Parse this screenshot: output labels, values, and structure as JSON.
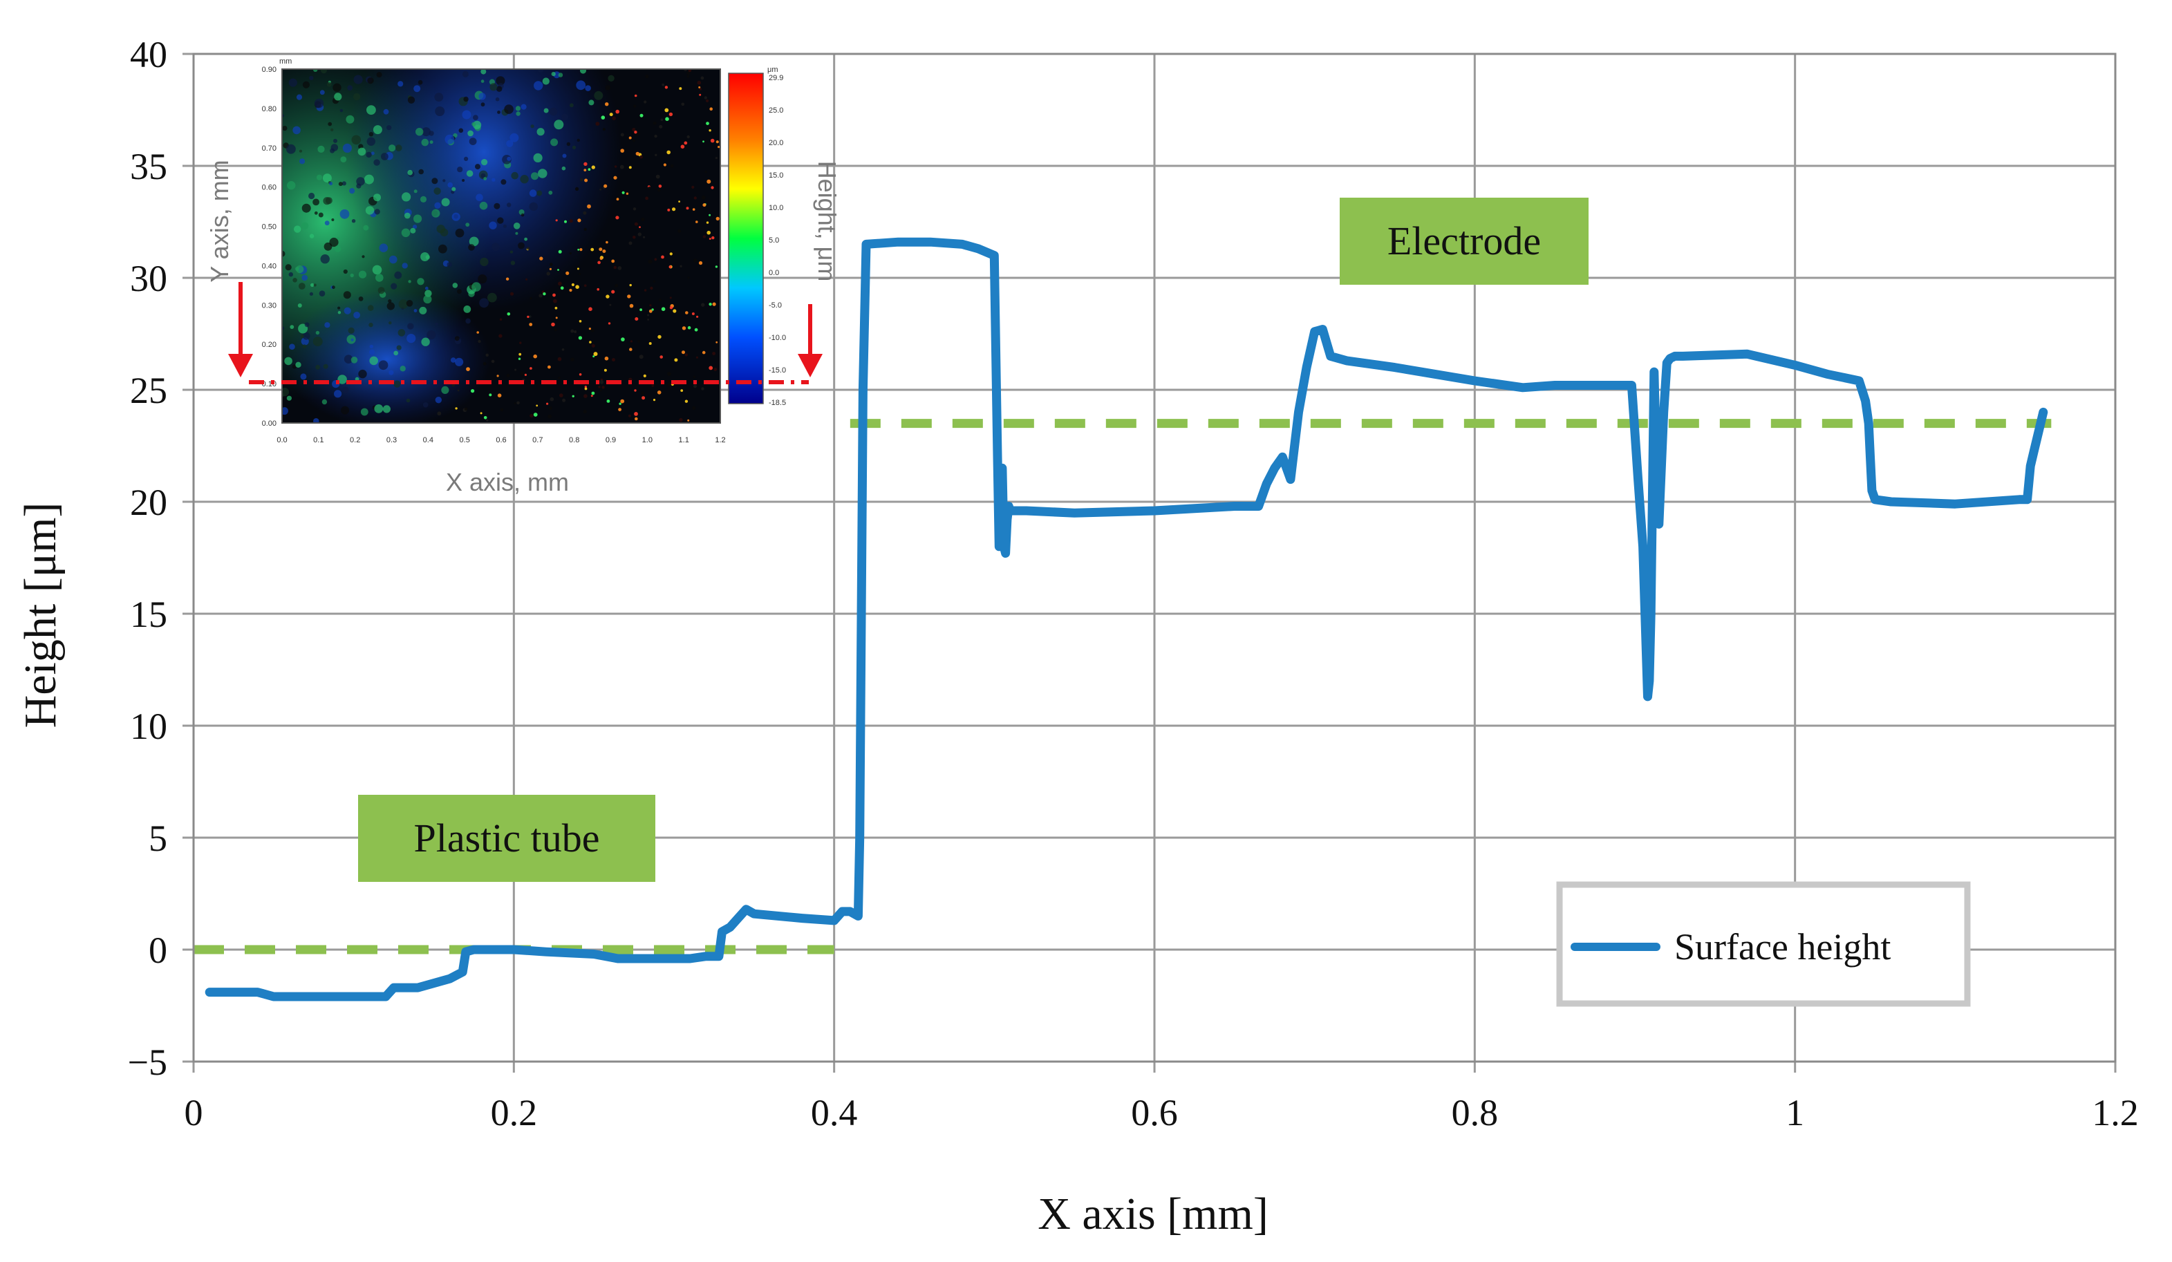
{
  "chart_data": {
    "type": "line",
    "title": "",
    "xlabel": "X axis [mm]",
    "ylabel": "Height [μm]",
    "xlim": [
      0,
      1.2
    ],
    "ylim": [
      -5,
      40
    ],
    "grid": true,
    "x_ticks": [
      "0",
      "0.2",
      "0.4",
      "0.6",
      "0.8",
      "1",
      "1.2"
    ],
    "y_ticks": [
      "−5",
      "0",
      "5",
      "10",
      "15",
      "20",
      "25",
      "30",
      "35",
      "40"
    ],
    "series": [
      {
        "name": "Surface height",
        "color": "#1f7fc4",
        "x": [
          0.01,
          0.02,
          0.04,
          0.05,
          0.07,
          0.1,
          0.12,
          0.125,
          0.14,
          0.15,
          0.16,
          0.168,
          0.17,
          0.175,
          0.2,
          0.22,
          0.25,
          0.265,
          0.29,
          0.31,
          0.32,
          0.328,
          0.33,
          0.335,
          0.34,
          0.345,
          0.35,
          0.38,
          0.4,
          0.405,
          0.41,
          0.415,
          0.416,
          0.418,
          0.42,
          0.44,
          0.46,
          0.48,
          0.49,
          0.5,
          0.502,
          0.503,
          0.505,
          0.506,
          0.507,
          0.508,
          0.509,
          0.51,
          0.512,
          0.52,
          0.55,
          0.6,
          0.65,
          0.665,
          0.67,
          0.675,
          0.68,
          0.685,
          0.69,
          0.695,
          0.7,
          0.705,
          0.71,
          0.72,
          0.75,
          0.8,
          0.83,
          0.85,
          0.89,
          0.898,
          0.902,
          0.905,
          0.908,
          0.909,
          0.91,
          0.912,
          0.914,
          0.915,
          0.918,
          0.92,
          0.922,
          0.925,
          0.93,
          0.97,
          1.0,
          1.02,
          1.04,
          1.044,
          1.046,
          1.047,
          1.048,
          1.05,
          1.06,
          1.1,
          1.14,
          1.145,
          1.147,
          1.149,
          1.152,
          1.155
        ],
        "y": [
          -1.9,
          -1.9,
          -1.9,
          -2.1,
          -2.1,
          -2.1,
          -2.1,
          -1.7,
          -1.7,
          -1.5,
          -1.3,
          -1.0,
          -0.1,
          0.0,
          0.0,
          -0.1,
          -0.2,
          -0.4,
          -0.4,
          -0.4,
          -0.3,
          -0.3,
          0.8,
          1.0,
          1.4,
          1.8,
          1.6,
          1.4,
          1.3,
          1.7,
          1.7,
          1.5,
          5.0,
          25.0,
          31.5,
          31.6,
          31.6,
          31.5,
          31.3,
          31.0,
          22.0,
          18.0,
          21.5,
          18.0,
          17.7,
          19.2,
          19.8,
          19.6,
          19.6,
          19.6,
          19.5,
          19.6,
          19.8,
          19.8,
          20.8,
          21.5,
          22.0,
          21.0,
          24.0,
          26.0,
          27.6,
          27.7,
          26.5,
          26.3,
          26.0,
          25.4,
          25.1,
          25.2,
          25.2,
          25.2,
          21.0,
          18.0,
          11.3,
          12.0,
          15.0,
          25.8,
          20.0,
          19.0,
          24.0,
          26.2,
          26.4,
          26.5,
          26.5,
          26.6,
          26.1,
          25.7,
          25.4,
          24.5,
          23.5,
          22.0,
          20.5,
          20.1,
          20.0,
          19.9,
          20.1,
          20.1,
          21.6,
          22.2,
          23.1,
          24.0
        ]
      }
    ],
    "reference_lines": [
      {
        "name": "Plastic tube level",
        "color": "#8dc04f",
        "y": 0,
        "x_start": 0.0,
        "x_end": 0.4
      },
      {
        "name": "Electrode level",
        "color": "#8dc04f",
        "y": 23.5,
        "x_start": 0.41,
        "x_end": 1.16
      }
    ],
    "annotations": [
      {
        "text": "Plastic tube",
        "x": 0.195,
        "y": 4.8
      },
      {
        "text": "Electrode",
        "x": 0.79,
        "y": 31.5
      }
    ],
    "legend": {
      "position": "bottom-right",
      "entries": [
        "Surface height"
      ]
    },
    "inset": {
      "xlabel": "X axis, mm",
      "ylabel": "Y axis, mm",
      "colorbar_label": "Height, μm",
      "x_ticks": [
        "0.0",
        "0.1",
        "0.2",
        "0.3",
        "0.4",
        "0.5",
        "0.6",
        "0.7",
        "0.8",
        "0.9",
        "1.0",
        "1.1",
        "1.2"
      ],
      "y_ticks": [
        "0.90",
        "0.80",
        "0.70",
        "0.60",
        "0.50",
        "0.40",
        "0.30",
        "0.20",
        "0.10",
        "0.00"
      ],
      "colorbar_ticks": [
        "29.9",
        "25.0",
        "20.0",
        "15.0",
        "10.0",
        "5.0",
        "0.0",
        "-5.0",
        "-10.0",
        "-15.0",
        "-18.5"
      ],
      "colorbar_unit": "μm",
      "x_unit": "mm"
    }
  }
}
